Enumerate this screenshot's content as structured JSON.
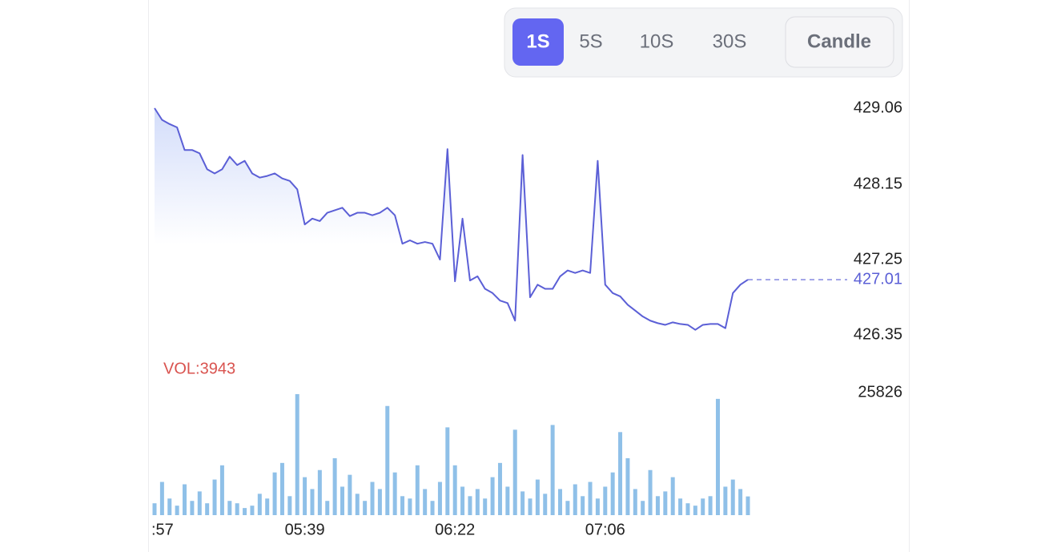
{
  "toolbar": {
    "intervals": [
      "1S",
      "5S",
      "10S",
      "30S"
    ],
    "toggle": "Candle"
  },
  "chart_data": [
    {
      "type": "line",
      "categories": [
        ":57",
        null,
        null,
        null,
        null,
        null,
        null,
        null,
        null,
        null,
        null,
        null,
        null,
        null,
        null,
        null,
        null,
        null,
        null,
        null,
        "05:39",
        null,
        null,
        null,
        null,
        null,
        null,
        null,
        null,
        null,
        null,
        null,
        null,
        null,
        null,
        null,
        null,
        null,
        null,
        null,
        "06:22",
        null,
        null,
        null,
        null,
        null,
        null,
        null,
        null,
        null,
        null,
        null,
        null,
        null,
        null,
        null,
        null,
        null,
        null,
        null,
        "07:06",
        null,
        null,
        null,
        null,
        null,
        null,
        null,
        null,
        null,
        null,
        null,
        null,
        null,
        null,
        null,
        null,
        null,
        null,
        null
      ],
      "values": [
        429.06,
        428.92,
        428.87,
        428.83,
        428.56,
        428.56,
        428.52,
        428.33,
        428.28,
        428.33,
        428.48,
        428.38,
        428.43,
        428.28,
        428.23,
        428.25,
        428.28,
        428.22,
        428.19,
        428.09,
        427.67,
        427.74,
        427.71,
        427.81,
        427.84,
        427.87,
        427.77,
        427.81,
        427.81,
        427.78,
        427.81,
        427.87,
        427.78,
        427.44,
        427.48,
        427.44,
        427.46,
        427.44,
        427.25,
        428.57,
        426.99,
        427.74,
        427.0,
        427.05,
        426.9,
        426.85,
        426.76,
        426.73,
        426.52,
        428.5,
        426.8,
        426.95,
        426.9,
        426.9,
        427.05,
        427.12,
        427.09,
        427.12,
        427.09,
        428.43,
        426.95,
        426.85,
        426.81,
        426.71,
        426.64,
        426.57,
        426.52,
        426.49,
        426.47,
        426.5,
        426.48,
        426.47,
        426.41,
        426.47,
        426.48,
        426.48,
        426.43,
        426.85,
        426.95,
        427.01
      ],
      "color": "#5b5fd6",
      "ylim": [
        426.35,
        429.06
      ],
      "yticks": [
        429.06,
        428.15,
        427.25,
        426.35
      ]
    },
    {
      "type": "bar",
      "title": "VOL:3943",
      "values": [
        2500,
        7000,
        3500,
        2000,
        6500,
        3000,
        5000,
        2500,
        7500,
        10500,
        3000,
        2500,
        1500,
        2000,
        4500,
        3500,
        9000,
        11000,
        4000,
        25500,
        8000,
        5500,
        9500,
        3000,
        12000,
        6000,
        8500,
        4500,
        3000,
        7000,
        5500,
        23000,
        9000,
        4000,
        3500,
        10500,
        5500,
        3000,
        7000,
        18500,
        10500,
        6000,
        4000,
        5500,
        3500,
        8000,
        11000,
        6000,
        18000,
        5000,
        3500,
        7500,
        4500,
        19000,
        5500,
        3000,
        6500,
        4000,
        7000,
        3500,
        6000,
        9000,
        17500,
        12000,
        5500,
        3000,
        9500,
        4000,
        5000,
        8000,
        3500,
        2500,
        2000,
        3500,
        4000,
        24500,
        6000,
        7500,
        5500,
        3943
      ],
      "color": "#8fc0e8",
      "ylim": [
        0,
        25826
      ],
      "yticks": [
        25826
      ]
    }
  ]
}
